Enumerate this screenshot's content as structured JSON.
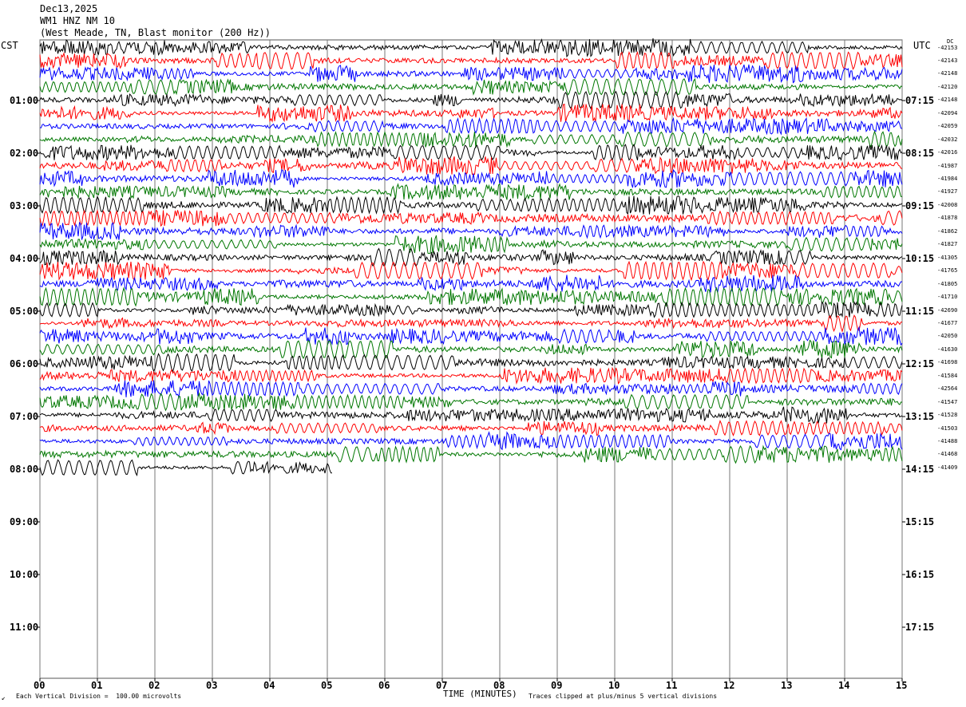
{
  "header": {
    "date": "Dec13,2025",
    "station": "WM1 HNZ NM 10",
    "location": "(West Meade, TN, Blast monitor (200 Hz))"
  },
  "left_axis_label": "CST",
  "right_axis_label": "UTC",
  "right_corner_label": "DC",
  "footer": {
    "corner_mark": "↙",
    "scale_note": "Each Vertical Division =  100.00 microvolts",
    "clip_note": "Traces clipped at plus/minus 5 vertical divisions"
  },
  "chart_data": {
    "type": "line",
    "title": "WM1 HNZ NM 10",
    "xlabel": "TIME (MINUTES)",
    "ylabel": "",
    "xlim": [
      0,
      15
    ],
    "x_ticks": [
      "00",
      "01",
      "02",
      "03",
      "04",
      "05",
      "06",
      "07",
      "08",
      "09",
      "10",
      "11",
      "12",
      "13",
      "14",
      "15"
    ],
    "left_ticks": [
      "01:00",
      "02:00",
      "03:00",
      "04:00",
      "05:00",
      "06:00",
      "07:00",
      "08:00",
      "09:00",
      "10:00",
      "11:00"
    ],
    "right_ticks": [
      "07:15",
      "08:15",
      "09:15",
      "10:15",
      "11:15",
      "12:15",
      "13:15",
      "14:15",
      "15:15",
      "16:15",
      "17:15"
    ],
    "trace_colors": [
      "#000000",
      "#ff0000",
      "#0000ff",
      "#007700"
    ],
    "trace_count": 33,
    "trace_minutes": 15,
    "last_trace_minutes": 5.1,
    "dc_offsets": [
      "-42153",
      "-42143",
      "-42148",
      "-42120",
      "-42148",
      "-42094",
      "-42059",
      "-42032",
      "-42016",
      "-41987",
      "-41984",
      "-41927",
      "-42008",
      "-41878",
      "-41862",
      "-41827",
      "-41305",
      "-41765",
      "-41805",
      "-41710",
      "-42690",
      "-41677",
      "-42050",
      "-41630",
      "-41698",
      "-41584",
      "-42564",
      "-41547",
      "-41528",
      "-41503",
      "-41488",
      "-41468",
      "-41409"
    ]
  }
}
